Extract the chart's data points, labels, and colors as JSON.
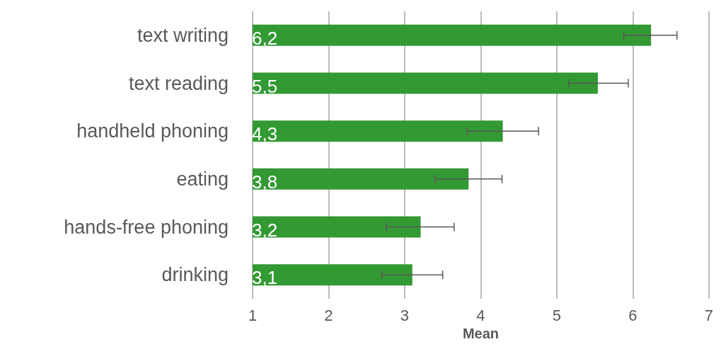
{
  "chart_data": {
    "type": "bar",
    "orientation": "horizontal",
    "xlabel": "Mean",
    "categories": [
      "text writing",
      "text reading",
      "handheld phoning",
      "eating",
      "hands-free phoning",
      "drinking"
    ],
    "values": [
      6.24,
      5.54,
      4.29,
      3.84,
      3.21,
      3.1
    ],
    "value_labels": [
      "6,2",
      "5,5",
      "4,3",
      "3,8",
      "3,2",
      "3,1"
    ],
    "errors": [
      [
        5.88,
        6.58
      ],
      [
        5.16,
        5.94
      ],
      [
        3.82,
        4.76
      ],
      [
        3.4,
        4.28
      ],
      [
        2.76,
        3.65
      ],
      [
        2.7,
        3.5
      ]
    ],
    "color": "#339933",
    "xlim": [
      1,
      7
    ],
    "xticks": [
      1,
      2,
      3,
      4,
      5,
      6,
      7
    ],
    "grid": "x"
  }
}
